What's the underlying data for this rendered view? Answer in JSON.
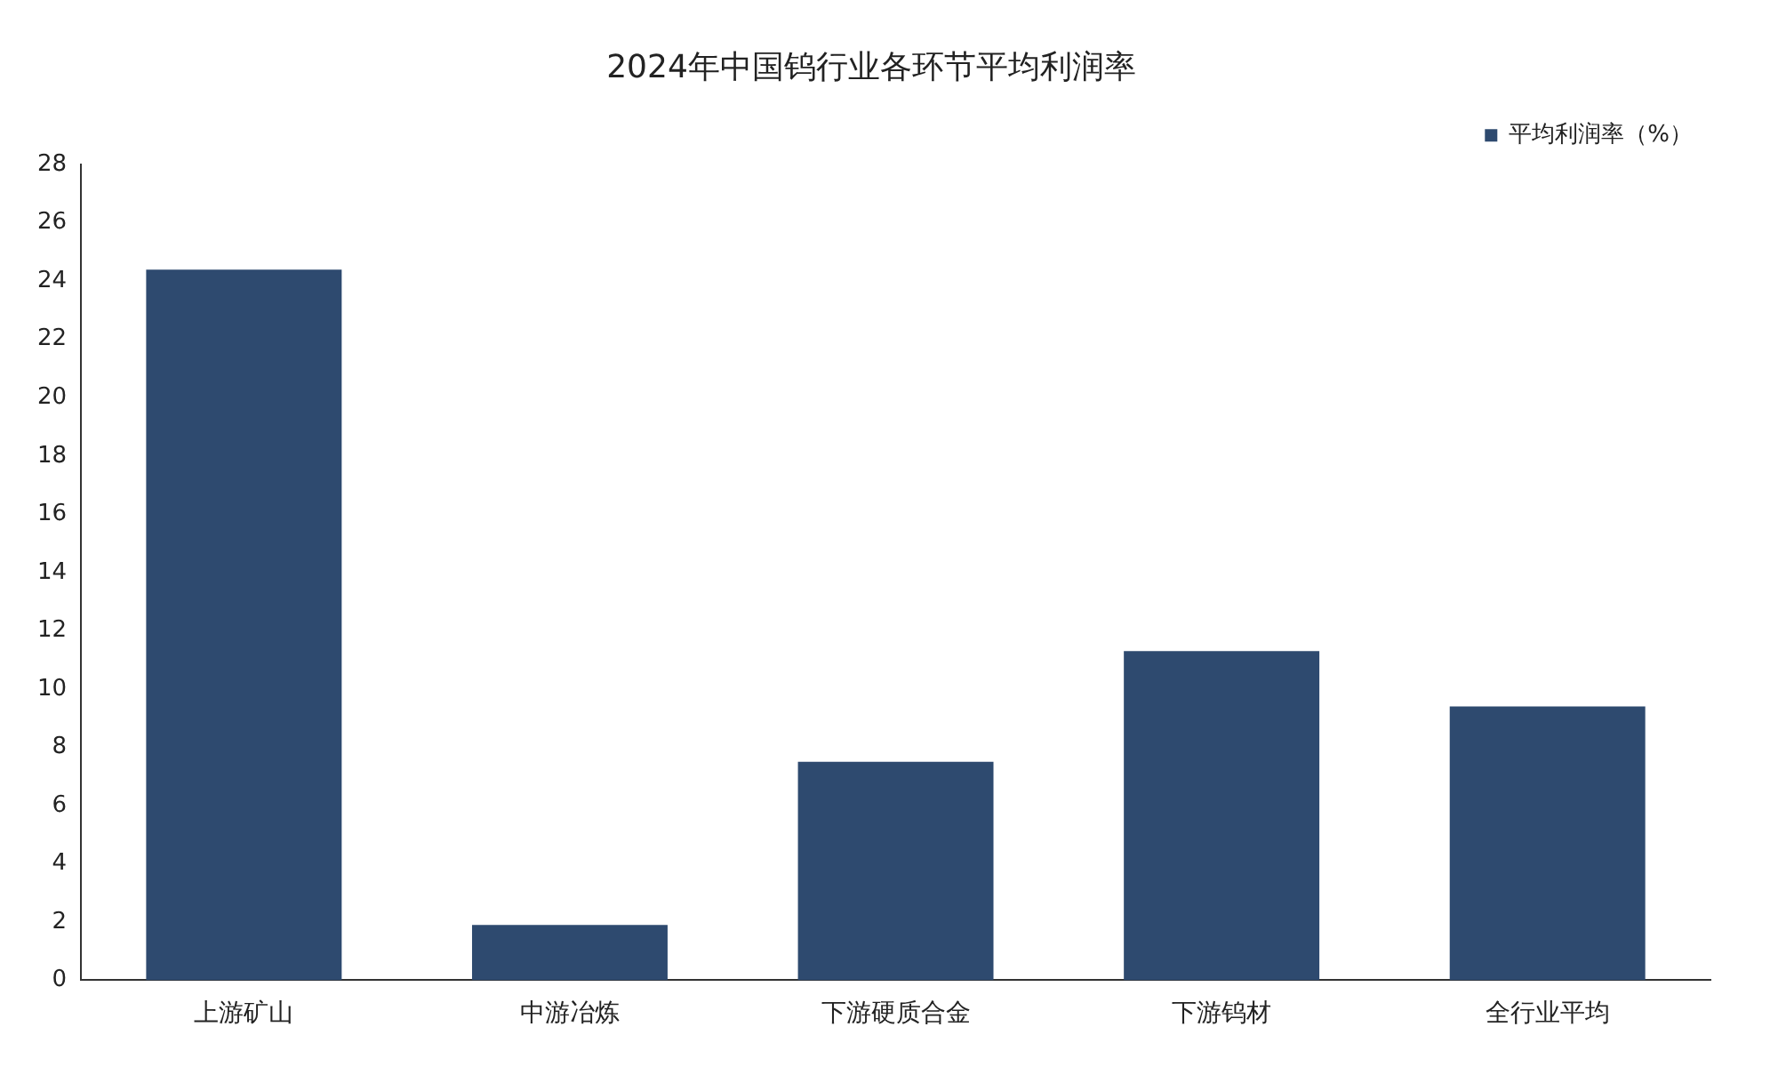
{
  "chart_data": {
    "type": "bar",
    "title": "2024年中国钨行业各环节平均利润率",
    "categories": [
      "上游矿山",
      "中游冶炼",
      "下游硬质合金",
      "下游钨材",
      "全行业平均"
    ],
    "series": [
      {
        "name": "平均利润率（%）",
        "color": "#2e4a6f",
        "values": [
          24.4,
          1.9,
          7.5,
          11.3,
          9.4
        ]
      }
    ],
    "ylim": [
      0,
      28
    ],
    "yticks": [
      0,
      2,
      4,
      6,
      8,
      10,
      12,
      14,
      16,
      18,
      20,
      22,
      24,
      26,
      28
    ],
    "grid": false,
    "legend": "top right"
  }
}
